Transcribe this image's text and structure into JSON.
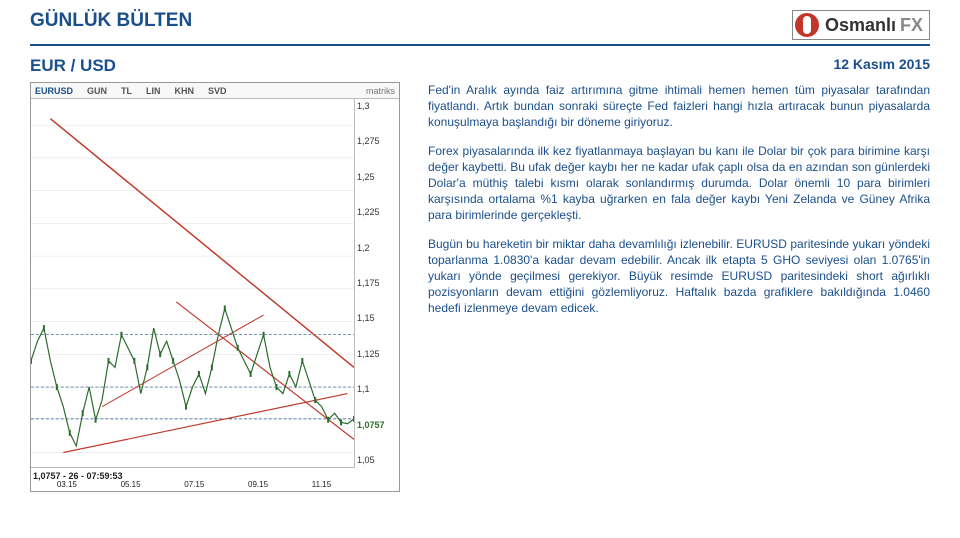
{
  "header": {
    "title": "GÜNLÜK BÜLTEN",
    "logo_text": "Osmanlı",
    "logo_suffix": "FX"
  },
  "date": "12 Kasım 2015",
  "pair": "EUR / USD",
  "chart": {
    "type": "candlestick-line",
    "top_bar": {
      "symbol": "EURUSD",
      "indicators": [
        "GUN",
        "TL",
        "LIN",
        "KHN",
        "SVD"
      ],
      "source": "matriks"
    },
    "background_color": "#ffffff",
    "grid_color": "#e0e0e0",
    "y_ticks": [
      "1,05",
      "1,0757",
      "1,1",
      "1,125",
      "1,15",
      "1,175",
      "1,2",
      "1,225",
      "1,25",
      "1,275",
      "1,3"
    ],
    "y_special": "1,0757",
    "ylim": [
      1.04,
      1.32
    ],
    "x_labels": [
      "03.15",
      "05.15",
      "07.15",
      "09.15",
      "11.15"
    ],
    "status_line": "1,0757 - 26 - 07:59:53",
    "price_line": {
      "color": "#2a6c2a",
      "points": [
        [
          0.0,
          1.12
        ],
        [
          0.02,
          1.135
        ],
        [
          0.04,
          1.145
        ],
        [
          0.06,
          1.12
        ],
        [
          0.08,
          1.1
        ],
        [
          0.1,
          1.085
        ],
        [
          0.12,
          1.065
        ],
        [
          0.14,
          1.055
        ],
        [
          0.16,
          1.08
        ],
        [
          0.18,
          1.1
        ],
        [
          0.2,
          1.075
        ],
        [
          0.22,
          1.09
        ],
        [
          0.24,
          1.12
        ],
        [
          0.26,
          1.115
        ],
        [
          0.28,
          1.14
        ],
        [
          0.3,
          1.13
        ],
        [
          0.32,
          1.12
        ],
        [
          0.34,
          1.095
        ],
        [
          0.36,
          1.115
        ],
        [
          0.38,
          1.145
        ],
        [
          0.4,
          1.125
        ],
        [
          0.42,
          1.135
        ],
        [
          0.44,
          1.12
        ],
        [
          0.46,
          1.105
        ],
        [
          0.48,
          1.085
        ],
        [
          0.5,
          1.1
        ],
        [
          0.52,
          1.11
        ],
        [
          0.54,
          1.095
        ],
        [
          0.56,
          1.115
        ],
        [
          0.58,
          1.14
        ],
        [
          0.6,
          1.16
        ],
        [
          0.62,
          1.145
        ],
        [
          0.64,
          1.13
        ],
        [
          0.66,
          1.12
        ],
        [
          0.68,
          1.11
        ],
        [
          0.7,
          1.125
        ],
        [
          0.72,
          1.14
        ],
        [
          0.74,
          1.115
        ],
        [
          0.76,
          1.1
        ],
        [
          0.78,
          1.095
        ],
        [
          0.8,
          1.11
        ],
        [
          0.82,
          1.1
        ],
        [
          0.84,
          1.12
        ],
        [
          0.86,
          1.105
        ],
        [
          0.88,
          1.09
        ],
        [
          0.9,
          1.085
        ],
        [
          0.92,
          1.075
        ],
        [
          0.94,
          1.08
        ],
        [
          0.96,
          1.073
        ],
        [
          0.98,
          1.072
        ],
        [
          1.0,
          1.0757
        ]
      ]
    },
    "trendlines": [
      {
        "color": "#c0392b",
        "width": 1.5,
        "points": [
          [
            0.06,
            1.305
          ],
          [
            1.0,
            1.115
          ]
        ]
      },
      {
        "color": "#c0392b",
        "width": 1.2,
        "points": [
          [
            0.45,
            1.165
          ],
          [
            1.0,
            1.06
          ]
        ]
      },
      {
        "color": "#c0392b",
        "width": 1.2,
        "points": [
          [
            0.1,
            1.05
          ],
          [
            0.98,
            1.095
          ]
        ]
      },
      {
        "color": "#c0392b",
        "width": 1.0,
        "points": [
          [
            0.22,
            1.085
          ],
          [
            0.72,
            1.155
          ]
        ]
      }
    ],
    "horiz_lines": [
      {
        "color": "#1b4f8b",
        "width": 0.7,
        "y": 1.1
      },
      {
        "color": "#1b4f8b",
        "width": 0.7,
        "y": 1.14
      },
      {
        "color": "#1b4f8b",
        "width": 0.7,
        "y": 1.0757
      }
    ]
  },
  "paragraphs": [
    "Fed'in Aralık ayında faiz artırımına gitme ihtimali hemen hemen tüm piyasalar tarafından fiyatlandı. Artık bundan sonraki süreçte Fed faizleri hangi hızla artıracak bunun piyasalarda konuşulmaya başlandığı bir döneme giriyoruz.",
    "Forex piyasalarında ilk kez fiyatlanmaya başlayan bu kanı ile Dolar bir çok para birimine karşı değer kaybetti. Bu ufak değer kaybı her ne kadar ufak çaplı olsa da en azından son günlerdeki Dolar'a müthiş talebi kısmı olarak sonlandırmış durumda. Dolar önemli 10 para birimleri karşısında ortalama %1 kayba uğrarken en fala değer kaybı Yeni Zelanda ve Güney Afrika para birimlerinde gerçekleşti.",
    "Bugün bu hareketin bir miktar daha devamlılığı izlenebilir. EURUSD paritesinde yukarı yöndeki toparlanma 1.0830'a kadar devam edebilir. Ancak ilk etapta 5 GHO seviyesi olan 1.0765'in yukarı yönde geçilmesi gerekiyor. Büyük resimde EURUSD paritesindeki short ağırlıklı pozisyonların devam ettiğini gözlemliyoruz. Haftalık bazda grafiklere bakıldığında 1.0460 hedefi izlenmeye devam edicek."
  ]
}
